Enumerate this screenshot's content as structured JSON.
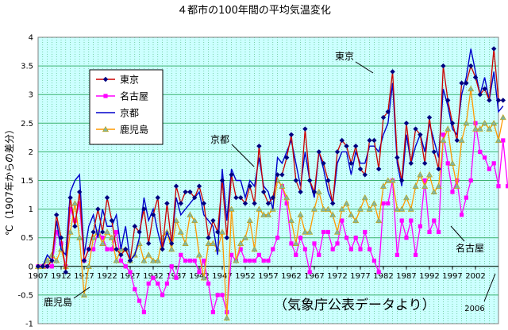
{
  "chart_data": {
    "type": "line",
    "title": "４都市の100年間の平均気温変化",
    "xlabel": "",
    "ylabel": "℃（1907年からの差分）",
    "xlim": [
      1907,
      2007
    ],
    "ylim": [
      -1,
      4
    ],
    "y_ticks": [
      -1,
      -0.5,
      0,
      0.5,
      1,
      1.5,
      2,
      2.5,
      3,
      3.5,
      4
    ],
    "x_ticks": [
      1907,
      1912,
      1917,
      1922,
      1927,
      1932,
      1937,
      1942,
      1947,
      1952,
      1957,
      1962,
      1967,
      1972,
      1977,
      1982,
      1987,
      1992,
      1997,
      2002
    ],
    "grid": true,
    "legend_position": "top-left",
    "colors": {
      "plot_background": "#ccffff",
      "grid": "#3cb371",
      "frame": "#808080",
      "legend_background": "#ffffff"
    },
    "series": [
      {
        "name": "東京",
        "color": "#cc0000",
        "marker": "diamond",
        "marker_color": "#000080",
        "values": [
          0,
          0,
          0,
          0.1,
          0.9,
          0.5,
          -0.1,
          1.2,
          0.7,
          1.3,
          0.1,
          0.3,
          0.6,
          1.0,
          0.6,
          1.2,
          0.8,
          0.3,
          0.2,
          0.3,
          0.1,
          0.7,
          0.6,
          1.0,
          0.4,
          0.9,
          1.2,
          0.3,
          1.1,
          0.4,
          1.4,
          1.1,
          1.3,
          1.3,
          1.2,
          1.4,
          1.1,
          0.5,
          0.8,
          0.6,
          1.5,
          0.5,
          1.6,
          1.2,
          1.2,
          1.1,
          1.4,
          1.1,
          2.1,
          1.3,
          1.1,
          1.2,
          1.6,
          1.6,
          1.9,
          2.3,
          1.5,
          1.3,
          2.4,
          1.5,
          1.3,
          2.0,
          1.8,
          1.5,
          1.1,
          2.0,
          2.2,
          2.1,
          1.8,
          2.1,
          1.7,
          1.6,
          2.2,
          2.2,
          1.7,
          2.6,
          2.7,
          3.4,
          1.9,
          1.5,
          2.5,
          1.8,
          2.4,
          2.3,
          1.8,
          2.6,
          2.0,
          1.7,
          3.5,
          2.9,
          2.5,
          2.2,
          3.2,
          3.2,
          3.5,
          3.3,
          3.0,
          3.1,
          2.9,
          3.8,
          2.9,
          2.9
        ]
      },
      {
        "name": "名古屋",
        "color": "#ff00ff",
        "marker": "square",
        "marker_color": "#ff00ff",
        "values": [
          0,
          0,
          0,
          0,
          0.6,
          0.4,
          0,
          1.0,
          0.8,
          1.1,
          0.1,
          0.3,
          0.3,
          0.6,
          0.5,
          0.3,
          0.3,
          0.6,
          0.1,
          0,
          -0.1,
          -0.4,
          -0.6,
          -0.8,
          -0.3,
          -0.2,
          -0.3,
          -0.5,
          -0.3,
          0,
          -0.2,
          0.2,
          0.1,
          0.1,
          0.1,
          -0.1,
          0.1,
          -0.3,
          -0.8,
          -0.5,
          -0.5,
          -0.8,
          0.2,
          0.1,
          0.3,
          0.1,
          0.1,
          0.1,
          0.2,
          0.1,
          0.1,
          0.3,
          0.5,
          1.4,
          1.1,
          0.4,
          0.2,
          0.5,
          0.3,
          -0.1,
          0.4,
          0.2,
          0.6,
          0.6,
          0.3,
          0.4,
          0.8,
          0.5,
          0.3,
          0.5,
          0.3,
          0.6,
          0.3,
          0.1,
          -0.1,
          1.1,
          1.1,
          1.5,
          0.2,
          0.8,
          0.5,
          0.8,
          0.2,
          0.7,
          1.5,
          0.6,
          0.8,
          0.6,
          2.3,
          1.8,
          1.3,
          1.5,
          0.9,
          1.2,
          1.5,
          2.5,
          2.0,
          1.9,
          1.7,
          1.8,
          1.4,
          2.2,
          1.4,
          1.6
        ]
      },
      {
        "name": "京都",
        "color": "#0000cc",
        "marker": "none",
        "values": [
          0,
          0,
          0.2,
          0.1,
          0.8,
          0.3,
          0.2,
          1.3,
          1.5,
          1.6,
          0.2,
          0.7,
          0.9,
          0.5,
          1.0,
          0.7,
          0.7,
          0.9,
          0.3,
          0.7,
          0.1,
          0.2,
          0.5,
          1.2,
          0.8,
          1.0,
          0.6,
          0.3,
          0.6,
          0.4,
          1.2,
          0.9,
          1.0,
          1.1,
          1.2,
          1.3,
          0.9,
          0.8,
          0.7,
          0.2,
          1.7,
          0.8,
          1.7,
          1.5,
          1.5,
          1.2,
          1.5,
          1.4,
          1.9,
          1.4,
          1.3,
          1.0,
          1.9,
          1.8,
          2.0,
          2.2,
          1.8,
          1.4,
          2.0,
          1.5,
          1.2,
          2.0,
          1.7,
          1.3,
          1.1,
          1.8,
          2.0,
          2.0,
          1.6,
          2.0,
          1.8,
          1.8,
          2.1,
          2.1,
          2.0,
          2.3,
          2.5,
          3.2,
          1.8,
          1.4,
          2.3,
          1.8,
          2.1,
          2.3,
          2.0,
          2.5,
          2.2,
          1.9,
          3.1,
          2.8,
          2.4,
          2.3,
          3.0,
          3.3,
          3.8,
          3.4,
          3.0,
          3.3,
          2.9,
          3.4,
          2.7,
          2.8
        ]
      },
      {
        "name": "鹿児島",
        "color": "#ff9900",
        "marker": "triangle",
        "marker_color": "#7fb3a0",
        "values": [
          0,
          0,
          0.1,
          0.2,
          0.1,
          0.3,
          0,
          0.6,
          1.1,
          0.5,
          -0.5,
          0,
          0.5,
          0.6,
          0.4,
          0.6,
          0.5,
          0.1,
          0.3,
          0.3,
          0.1,
          0.2,
          0.4,
          0.1,
          0.2,
          0.1,
          0.1,
          0.5,
          0.6,
          0.3,
          0.8,
          0.6,
          0.4,
          0.9,
          0.8,
          0.2,
          -0.2,
          0.4,
          0.4,
          0.3,
          0.6,
          -0.9,
          1.0,
          0.1,
          0.4,
          0.5,
          0.8,
          0.3,
          1.0,
          0.9,
          0.9,
          1.0,
          1.5,
          1.4,
          1.2,
          0.8,
          0.4,
          0.9,
          0.6,
          0.6,
          1.0,
          1.3,
          1.0,
          1.0,
          0.9,
          0.6,
          1.0,
          1.1,
          0.9,
          0.8,
          1.0,
          1.2,
          1.0,
          1.1,
          0.8,
          1.4,
          1.5,
          1.5,
          1.0,
          1.0,
          1.2,
          1.0,
          1.4,
          1.6,
          1.4,
          1.6,
          1.3,
          1.4,
          2.2,
          2.4,
          1.8,
          1.4,
          2.2,
          2.5,
          3.1,
          2.4,
          2.4,
          2.5,
          2.4,
          2.5,
          2.2,
          2.6
        ]
      }
    ]
  },
  "annotations": {
    "tokyo": "東京",
    "kyoto": "京都",
    "nagoya": "名古屋",
    "kagoshima": "鹿児島",
    "source": "（気象庁公表データより）",
    "year_2006": "2006"
  }
}
